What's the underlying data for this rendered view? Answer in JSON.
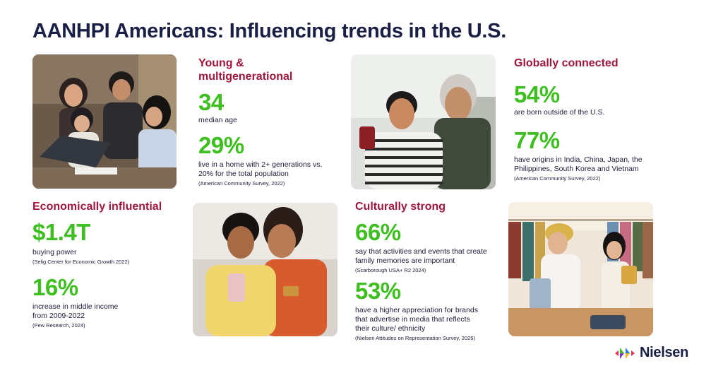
{
  "title": "AANHPI Americans: Influencing trends in the U.S.",
  "young": {
    "heading": "Young & multigenerational",
    "stat1": "34",
    "desc1": "median age",
    "stat2": "29%",
    "desc2": "live in a home with 2+ generations vs. 20% for the total population",
    "source": "(American Community Survey, 2022)"
  },
  "global": {
    "heading": "Globally connected",
    "stat1": "54%",
    "desc1": "are born outside of the U.S.",
    "stat2": "77%",
    "desc2": "have origins in India, China, Japan, the Philippines, South Korea and Vietnam",
    "source": "(American Community Survey, 2022)"
  },
  "economic": {
    "heading": "Economically influential",
    "stat1": "$1.4T",
    "desc1": "buying power",
    "source1": "(Selig Center for Economic Growth 2022)",
    "stat2": "16%",
    "desc2": "increase in middle income from 2009-2022",
    "source2": "(Pew Research, 2024)"
  },
  "cultural": {
    "heading": "Culturally strong",
    "stat1": "66%",
    "desc1": "say that activities and events that create family memories are important",
    "source1": "(Scarborough USA+ R2 2024)",
    "stat2": "53%",
    "desc2": "have a higher appreciation for brands that advertise in media that reflects their culture/ ethnicity",
    "source2": "(Nielsen Attitudes on Representation Survey, 2025)"
  },
  "logo": {
    "name": "Nielsen"
  },
  "colors": {
    "heading": "#a0173b",
    "stat": "#3cbf1f",
    "title": "#1a1f45"
  }
}
